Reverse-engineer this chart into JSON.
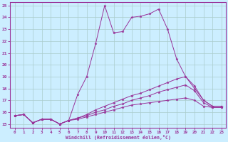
{
  "xlabel": "Windchill (Refroidissement éolien,°C)",
  "xlim": [
    -0.5,
    23.5
  ],
  "ylim": [
    14.7,
    25.3
  ],
  "xticks": [
    0,
    1,
    2,
    3,
    4,
    5,
    6,
    7,
    8,
    9,
    10,
    11,
    12,
    13,
    14,
    15,
    16,
    17,
    18,
    19,
    20,
    21,
    22,
    23
  ],
  "yticks": [
    15,
    16,
    17,
    18,
    19,
    20,
    21,
    22,
    23,
    24,
    25
  ],
  "background_color": "#cceeff",
  "line_color": "#993399",
  "grid_color": "#aacccc",
  "lines": [
    {
      "x": [
        0,
        1,
        2,
        3,
        4,
        5,
        6,
        7,
        8,
        9,
        10,
        11,
        12,
        13,
        14,
        15,
        16,
        17,
        18,
        19,
        20,
        21,
        22,
        23
      ],
      "y": [
        15.7,
        15.8,
        15.1,
        15.4,
        15.4,
        15.0,
        15.3,
        17.5,
        19.0,
        21.8,
        25.0,
        22.7,
        22.8,
        24.0,
        24.1,
        24.3,
        24.7,
        23.0,
        20.5,
        19.0,
        18.0,
        17.0,
        16.5,
        16.5
      ]
    },
    {
      "x": [
        0,
        1,
        2,
        3,
        4,
        5,
        6,
        7,
        8,
        9,
        10,
        11,
        12,
        13,
        14,
        15,
        16,
        17,
        18,
        19,
        20,
        21,
        22,
        23
      ],
      "y": [
        15.7,
        15.8,
        15.1,
        15.4,
        15.4,
        15.0,
        15.3,
        15.5,
        15.8,
        16.2,
        16.5,
        16.8,
        17.1,
        17.4,
        17.6,
        17.9,
        18.2,
        18.5,
        18.8,
        19.0,
        18.2,
        17.0,
        16.5,
        16.5
      ]
    },
    {
      "x": [
        0,
        1,
        2,
        3,
        4,
        5,
        6,
        7,
        8,
        9,
        10,
        11,
        12,
        13,
        14,
        15,
        16,
        17,
        18,
        19,
        20,
        21,
        22,
        23
      ],
      "y": [
        15.7,
        15.8,
        15.1,
        15.4,
        15.4,
        15.0,
        15.3,
        15.5,
        15.7,
        16.0,
        16.2,
        16.5,
        16.7,
        17.0,
        17.2,
        17.4,
        17.7,
        17.9,
        18.1,
        18.3,
        17.8,
        16.8,
        16.4,
        16.4
      ]
    },
    {
      "x": [
        0,
        1,
        2,
        3,
        4,
        5,
        6,
        7,
        8,
        9,
        10,
        11,
        12,
        13,
        14,
        15,
        16,
        17,
        18,
        19,
        20,
        21,
        22,
        23
      ],
      "y": [
        15.7,
        15.8,
        15.1,
        15.4,
        15.4,
        15.0,
        15.3,
        15.4,
        15.6,
        15.8,
        16.0,
        16.2,
        16.4,
        16.6,
        16.7,
        16.8,
        16.9,
        17.0,
        17.1,
        17.2,
        17.0,
        16.5,
        16.4,
        16.4
      ]
    }
  ]
}
